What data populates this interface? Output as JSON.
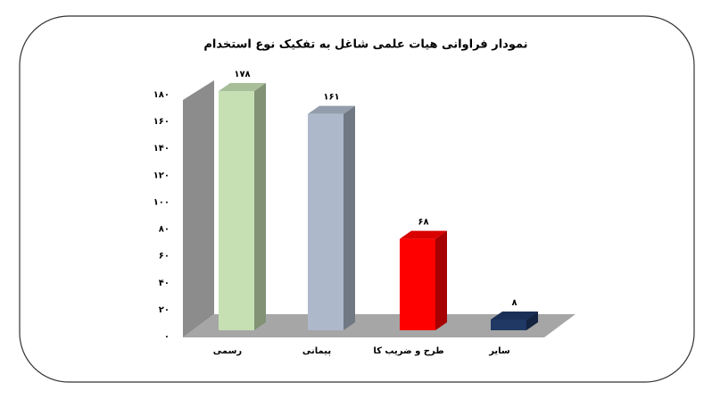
{
  "chart_data": {
    "type": "bar3d",
    "title": "نمودار فراوانی هیات علمی شاغل به تفکیک نوع استخدام",
    "categories": [
      "رسمی",
      "پیمانی",
      "طرح و ضریب کا",
      "سایر"
    ],
    "values": [
      178,
      161,
      68,
      8
    ],
    "value_labels": [
      "۱۷۸",
      "۱۶۱",
      "۶۸",
      "۸"
    ],
    "colors": [
      "#c6e0b4",
      "#adb9ca",
      "#ff0000",
      "#1f3864"
    ],
    "ylim": [
      0,
      180
    ],
    "yticks": [
      {
        "value": 0,
        "label": "۰"
      },
      {
        "value": 20,
        "label": "۲۰"
      },
      {
        "value": 40,
        "label": "۴۰"
      },
      {
        "value": 60,
        "label": "۶۰"
      },
      {
        "value": 80,
        "label": "۸۰"
      },
      {
        "value": 100,
        "label": "۱۰۰"
      },
      {
        "value": 120,
        "label": "۱۲۰"
      },
      {
        "value": 140,
        "label": "۱۴۰"
      },
      {
        "value": 160,
        "label": "۱۶۰"
      },
      {
        "value": 180,
        "label": "۱۸۰"
      }
    ]
  }
}
